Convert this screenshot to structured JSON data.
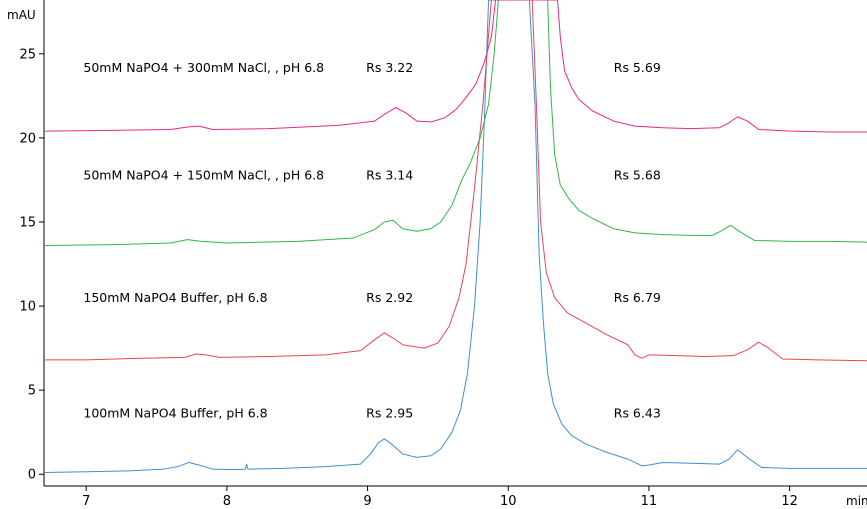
{
  "chart_data": {
    "type": "line",
    "ylabel": "mAU",
    "xlabel": "min",
    "xlim": [
      6.7,
      12.55
    ],
    "ylim": [
      -0.7,
      28.2
    ],
    "xticks": [
      7,
      8,
      9,
      10,
      11,
      12
    ],
    "yticks": [
      0,
      5,
      10,
      15,
      20,
      25
    ],
    "grid": false,
    "colors": {
      "blue": "#3f8fd0",
      "red": "#e8474f",
      "green": "#35b44a",
      "magenta": "#e6288f"
    },
    "series": [
      {
        "name": "100mM NaPO4 Buffer, pH 6.8",
        "color": "blue",
        "points": [
          [
            6.7,
            0.1
          ],
          [
            7.0,
            0.15
          ],
          [
            7.3,
            0.2
          ],
          [
            7.55,
            0.3
          ],
          [
            7.65,
            0.45
          ],
          [
            7.73,
            0.7
          ],
          [
            7.8,
            0.55
          ],
          [
            7.9,
            0.3
          ],
          [
            8.0,
            0.28
          ],
          [
            8.1,
            0.28
          ],
          [
            8.13,
            0.3
          ],
          [
            8.14,
            0.6
          ],
          [
            8.15,
            0.3
          ],
          [
            8.4,
            0.35
          ],
          [
            8.7,
            0.45
          ],
          [
            8.95,
            0.6
          ],
          [
            9.02,
            1.2
          ],
          [
            9.08,
            1.9
          ],
          [
            9.12,
            2.1
          ],
          [
            9.17,
            1.8
          ],
          [
            9.25,
            1.2
          ],
          [
            9.35,
            1.0
          ],
          [
            9.45,
            1.1
          ],
          [
            9.52,
            1.5
          ],
          [
            9.6,
            2.5
          ],
          [
            9.66,
            3.8
          ],
          [
            9.71,
            6.0
          ],
          [
            9.76,
            10.0
          ],
          [
            9.8,
            15.0
          ],
          [
            9.83,
            21.0
          ],
          [
            9.86,
            28.2
          ],
          [
            10.15,
            28.2
          ],
          [
            10.19,
            22.0
          ],
          [
            10.22,
            13.0
          ],
          [
            10.25,
            9.0
          ],
          [
            10.28,
            6.0
          ],
          [
            10.32,
            4.2
          ],
          [
            10.38,
            3.0
          ],
          [
            10.45,
            2.3
          ],
          [
            10.55,
            1.8
          ],
          [
            10.7,
            1.3
          ],
          [
            10.85,
            0.9
          ],
          [
            10.95,
            0.5
          ],
          [
            11.0,
            0.55
          ],
          [
            11.1,
            0.7
          ],
          [
            11.3,
            0.65
          ],
          [
            11.5,
            0.6
          ],
          [
            11.57,
            0.9
          ],
          [
            11.63,
            1.45
          ],
          [
            11.7,
            1.0
          ],
          [
            11.8,
            0.4
          ],
          [
            12.0,
            0.35
          ],
          [
            12.3,
            0.35
          ],
          [
            12.55,
            0.35
          ]
        ]
      },
      {
        "name": "150mM NaPO4 Buffer, pH 6.8",
        "color": "red",
        "points": [
          [
            6.7,
            6.8
          ],
          [
            7.0,
            6.8
          ],
          [
            7.4,
            6.9
          ],
          [
            7.7,
            6.95
          ],
          [
            7.78,
            7.15
          ],
          [
            7.85,
            7.1
          ],
          [
            7.95,
            6.95
          ],
          [
            8.3,
            7.0
          ],
          [
            8.7,
            7.1
          ],
          [
            8.95,
            7.35
          ],
          [
            9.05,
            8.0
          ],
          [
            9.12,
            8.4
          ],
          [
            9.18,
            8.1
          ],
          [
            9.25,
            7.7
          ],
          [
            9.4,
            7.5
          ],
          [
            9.5,
            7.8
          ],
          [
            9.58,
            8.8
          ],
          [
            9.65,
            10.5
          ],
          [
            9.7,
            12.5
          ],
          [
            9.76,
            17.0
          ],
          [
            9.82,
            22.0
          ],
          [
            9.88,
            28.2
          ],
          [
            10.17,
            28.2
          ],
          [
            10.2,
            22.0
          ],
          [
            10.23,
            15.0
          ],
          [
            10.27,
            12.0
          ],
          [
            10.33,
            10.5
          ],
          [
            10.42,
            9.6
          ],
          [
            10.55,
            9.0
          ],
          [
            10.7,
            8.3
          ],
          [
            10.85,
            7.7
          ],
          [
            10.9,
            7.1
          ],
          [
            10.95,
            6.9
          ],
          [
            11.0,
            7.1
          ],
          [
            11.2,
            7.05
          ],
          [
            11.4,
            7.0
          ],
          [
            11.6,
            7.05
          ],
          [
            11.7,
            7.4
          ],
          [
            11.78,
            7.85
          ],
          [
            11.85,
            7.5
          ],
          [
            11.95,
            6.85
          ],
          [
            12.2,
            6.8
          ],
          [
            12.55,
            6.75
          ]
        ]
      },
      {
        "name": "50mM NaPO4 + 150mM NaCl, , pH 6.8",
        "color": "green",
        "points": [
          [
            6.7,
            13.6
          ],
          [
            7.2,
            13.65
          ],
          [
            7.6,
            13.75
          ],
          [
            7.72,
            13.95
          ],
          [
            7.82,
            13.85
          ],
          [
            8.0,
            13.75
          ],
          [
            8.5,
            13.85
          ],
          [
            8.9,
            14.05
          ],
          [
            9.05,
            14.55
          ],
          [
            9.12,
            15.0
          ],
          [
            9.18,
            15.1
          ],
          [
            9.25,
            14.6
          ],
          [
            9.35,
            14.45
          ],
          [
            9.45,
            14.6
          ],
          [
            9.52,
            15.0
          ],
          [
            9.6,
            16.0
          ],
          [
            9.67,
            17.5
          ],
          [
            9.73,
            18.5
          ],
          [
            9.8,
            20.0
          ],
          [
            9.86,
            22.0
          ],
          [
            9.9,
            25.0
          ],
          [
            9.93,
            28.2
          ],
          [
            10.28,
            28.2
          ],
          [
            10.3,
            23.0
          ],
          [
            10.33,
            19.0
          ],
          [
            10.37,
            17.2
          ],
          [
            10.43,
            16.4
          ],
          [
            10.5,
            15.7
          ],
          [
            10.6,
            15.2
          ],
          [
            10.75,
            14.6
          ],
          [
            10.9,
            14.35
          ],
          [
            11.1,
            14.25
          ],
          [
            11.3,
            14.2
          ],
          [
            11.45,
            14.2
          ],
          [
            11.52,
            14.5
          ],
          [
            11.58,
            14.8
          ],
          [
            11.65,
            14.4
          ],
          [
            11.75,
            13.9
          ],
          [
            12.0,
            13.85
          ],
          [
            12.3,
            13.85
          ],
          [
            12.55,
            13.8
          ]
        ]
      },
      {
        "name": "50mM NaPO4 + 300mM  NaCl, , pH 6.8",
        "color": "magenta",
        "points": [
          [
            6.7,
            20.4
          ],
          [
            7.2,
            20.45
          ],
          [
            7.6,
            20.5
          ],
          [
            7.72,
            20.65
          ],
          [
            7.8,
            20.7
          ],
          [
            7.9,
            20.5
          ],
          [
            8.3,
            20.55
          ],
          [
            8.8,
            20.75
          ],
          [
            9.05,
            21.0
          ],
          [
            9.12,
            21.4
          ],
          [
            9.2,
            21.8
          ],
          [
            9.27,
            21.5
          ],
          [
            9.35,
            21.0
          ],
          [
            9.45,
            20.95
          ],
          [
            9.55,
            21.2
          ],
          [
            9.63,
            21.7
          ],
          [
            9.7,
            22.4
          ],
          [
            9.77,
            23.2
          ],
          [
            9.83,
            24.5
          ],
          [
            9.88,
            26.0
          ],
          [
            9.91,
            28.2
          ],
          [
            10.35,
            28.2
          ],
          [
            10.37,
            26.0
          ],
          [
            10.4,
            24.0
          ],
          [
            10.45,
            23.0
          ],
          [
            10.5,
            22.3
          ],
          [
            10.6,
            21.6
          ],
          [
            10.75,
            21.0
          ],
          [
            10.9,
            20.7
          ],
          [
            11.1,
            20.6
          ],
          [
            11.3,
            20.55
          ],
          [
            11.5,
            20.6
          ],
          [
            11.57,
            20.9
          ],
          [
            11.63,
            21.25
          ],
          [
            11.7,
            21.0
          ],
          [
            11.78,
            20.5
          ],
          [
            12.0,
            20.4
          ],
          [
            12.3,
            20.35
          ],
          [
            12.55,
            20.35
          ]
        ]
      }
    ],
    "annotations": [
      {
        "text": "50mM NaPO4 + 300mM  NaCl, , pH 6.8",
        "x": 6.98,
        "y": 24.2
      },
      {
        "text": "Rs 3.22",
        "x": 8.99,
        "y": 24.2
      },
      {
        "text": "Rs 5.69",
        "x": 10.75,
        "y": 24.2
      },
      {
        "text": "50mM NaPO4 + 150mM NaCl, , pH 6.8",
        "x": 6.98,
        "y": 17.8
      },
      {
        "text": "Rs 3.14",
        "x": 8.99,
        "y": 17.8
      },
      {
        "text": "Rs 5.68",
        "x": 10.75,
        "y": 17.8
      },
      {
        "text": "150mM NaPO4 Buffer, pH 6.8",
        "x": 6.98,
        "y": 10.5
      },
      {
        "text": "Rs 2.92",
        "x": 8.99,
        "y": 10.5
      },
      {
        "text": "Rs 6.79",
        "x": 10.75,
        "y": 10.5
      },
      {
        "text": "100mM NaPO4 Buffer, pH 6.8",
        "x": 6.98,
        "y": 3.65
      },
      {
        "text": "Rs 2.95",
        "x": 8.99,
        "y": 3.65
      },
      {
        "text": "Rs 6.43",
        "x": 10.75,
        "y": 3.65
      }
    ]
  }
}
